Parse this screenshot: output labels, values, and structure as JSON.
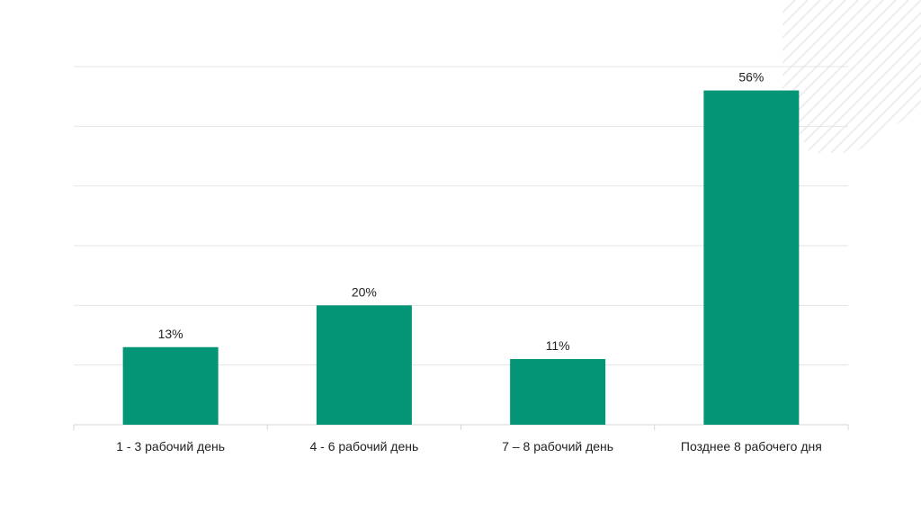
{
  "chart_data": {
    "type": "bar",
    "categories": [
      "1 - 3 рабочий день",
      "4 - 6 рабочий день",
      "7 – 8 рабочий день",
      "Позднее 8 рабочего дня"
    ],
    "values": [
      13,
      20,
      11,
      56
    ],
    "value_labels": [
      "13%",
      "20%",
      "11%",
      "56%"
    ],
    "title": "",
    "xlabel": "",
    "ylabel": "",
    "ylim": [
      0,
      60
    ],
    "y_tick_values": [
      0,
      10,
      20,
      30,
      40,
      50,
      60
    ],
    "grid": true,
    "legend": "none",
    "colors": {
      "bar": "#039575",
      "grid": "#e4e4e4",
      "text": "#222222",
      "decor": "#eeeeee"
    }
  }
}
